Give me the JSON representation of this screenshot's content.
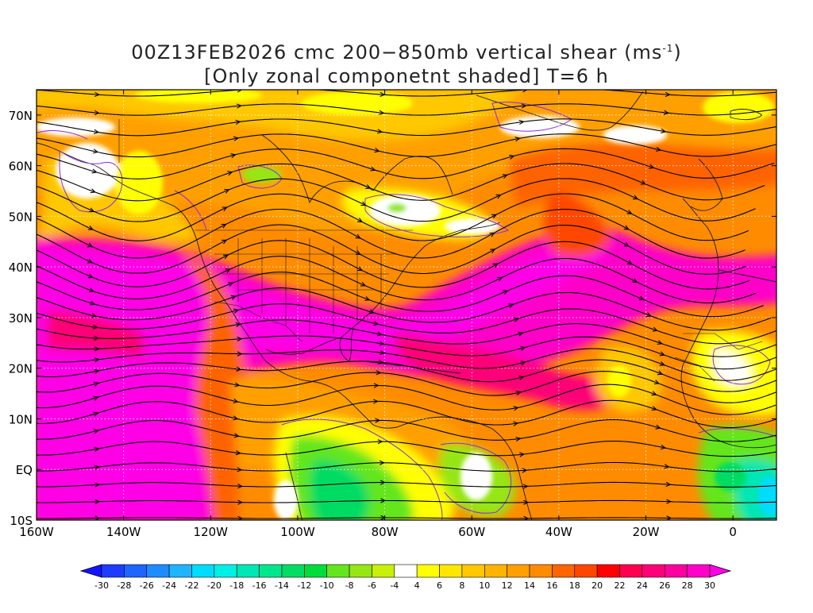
{
  "title": {
    "line1_prefix": "00Z13FEB2026 cmc 200−850mb vertical shear (ms",
    "line1_sup": "-1",
    "line1_suffix": ")",
    "line2": "[Only zonal componetnt shaded] T=6 h"
  },
  "axes": {
    "lon_labels": [
      "160W",
      "140W",
      "120W",
      "100W",
      "80W",
      "60W",
      "40W",
      "20W",
      "0"
    ],
    "lon_values": [
      -160,
      -140,
      -120,
      -100,
      -80,
      -60,
      -40,
      -20,
      0
    ],
    "lat_labels": [
      "70N",
      "60N",
      "50N",
      "40N",
      "30N",
      "20N",
      "10N",
      "EQ",
      "10S"
    ],
    "lat_values": [
      70,
      60,
      50,
      40,
      30,
      20,
      10,
      0,
      -10
    ],
    "lon_range": [
      -160,
      10
    ],
    "lat_range": [
      -10,
      75
    ]
  },
  "colorbar": {
    "labels": [
      "-30",
      "-28",
      "-26",
      "-24",
      "-22",
      "-20",
      "-18",
      "-16",
      "-14",
      "-12",
      "-10",
      "-8",
      "-6",
      "-4",
      "4",
      "6",
      "8",
      "10",
      "12",
      "14",
      "16",
      "18",
      "20",
      "22",
      "24",
      "26",
      "28",
      "30"
    ],
    "colors": [
      "#1414ff",
      "#1e3cff",
      "#1e64ff",
      "#1e8cff",
      "#1eb4ff",
      "#00dcff",
      "#00f0e6",
      "#00e6b4",
      "#00e68c",
      "#00dc64",
      "#00dc3c",
      "#64e61e",
      "#96e614",
      "#c8f00a",
      "#ffffff",
      "#ffff00",
      "#ffe600",
      "#ffc800",
      "#ffb400",
      "#ffa000",
      "#ff8c00",
      "#ff6400",
      "#ff4600",
      "#ff0000",
      "#ff0050",
      "#ff0078",
      "#ff00a0",
      "#ff00c8",
      "#ff00e6"
    ],
    "unit": "ms-1"
  },
  "map": {
    "field": "zonal component of 200-850mb vertical shear",
    "lead_time": "T=6 h",
    "grid": true
  }
}
